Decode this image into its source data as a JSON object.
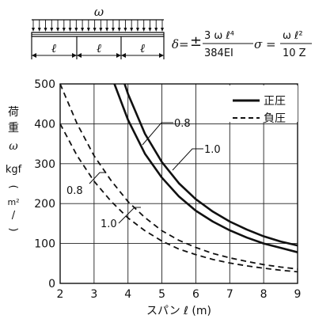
{
  "diagram": {
    "load_symbol": "ω",
    "span_symbol": "ℓ",
    "formula_delta_lhs": "δ=",
    "formula_delta_num": "3 ω ℓ⁴",
    "formula_delta_den": "384EI",
    "formula_sigma_lhs": "σ =",
    "formula_sigma_num": "ω ℓ²",
    "formula_sigma_den": "10 Z"
  },
  "chart_data": {
    "type": "line",
    "xlabel": "スパン ℓ (m)",
    "ylabel_parts": [
      "荷",
      "重",
      "ω",
      "kgf",
      "(",
      "m²",
      "/",
      ")"
    ],
    "xlim": [
      2,
      9
    ],
    "ylim": [
      0,
      500
    ],
    "xticks": [
      2,
      3,
      4,
      5,
      6,
      7,
      8,
      9
    ],
    "yticks": [
      0,
      100,
      200,
      300,
      400,
      500
    ],
    "grid": true,
    "legend_position": "top-right",
    "legend": [
      {
        "label": "正圧",
        "style": "solid"
      },
      {
        "label": "負圧",
        "style": "dashed"
      }
    ],
    "series": [
      {
        "label": "1.0",
        "style": "solid",
        "x": [
          3.9,
          4,
          4.5,
          5,
          5.5,
          6,
          6.5,
          7,
          7.5,
          8,
          8.5,
          9
        ],
        "y": [
          500,
          475,
          375,
          304,
          251,
          211,
          180,
          155,
          135,
          118,
          105,
          95
        ]
      },
      {
        "label": "0.8",
        "style": "solid",
        "x": [
          3.6,
          4,
          4.5,
          5,
          5.5,
          6,
          6.5,
          7,
          7.5,
          8,
          8.5,
          9
        ],
        "y": [
          500,
          410,
          325,
          265,
          218,
          182,
          155,
          133,
          115,
          100,
          89,
          78
        ]
      },
      {
        "label": "1.0",
        "style": "dashed",
        "x": [
          2,
          2.5,
          3,
          3.5,
          4,
          4.5,
          5,
          5.5,
          6,
          6.5,
          7,
          7.5,
          8,
          8.5,
          9
        ],
        "y": [
          500,
          400,
          320,
          258,
          205,
          165,
          132,
          108,
          90,
          75,
          64,
          55,
          47,
          41,
          36
        ]
      },
      {
        "label": "0.8",
        "style": "dashed",
        "x": [
          2,
          2.5,
          3,
          3.5,
          4,
          4.5,
          5,
          5.5,
          6,
          6.5,
          7,
          7.5,
          8,
          8.5,
          9
        ],
        "y": [
          400,
          320,
          256,
          206,
          164,
          132,
          106,
          86,
          72,
          60,
          51,
          44,
          38,
          33,
          29
        ]
      }
    ]
  }
}
